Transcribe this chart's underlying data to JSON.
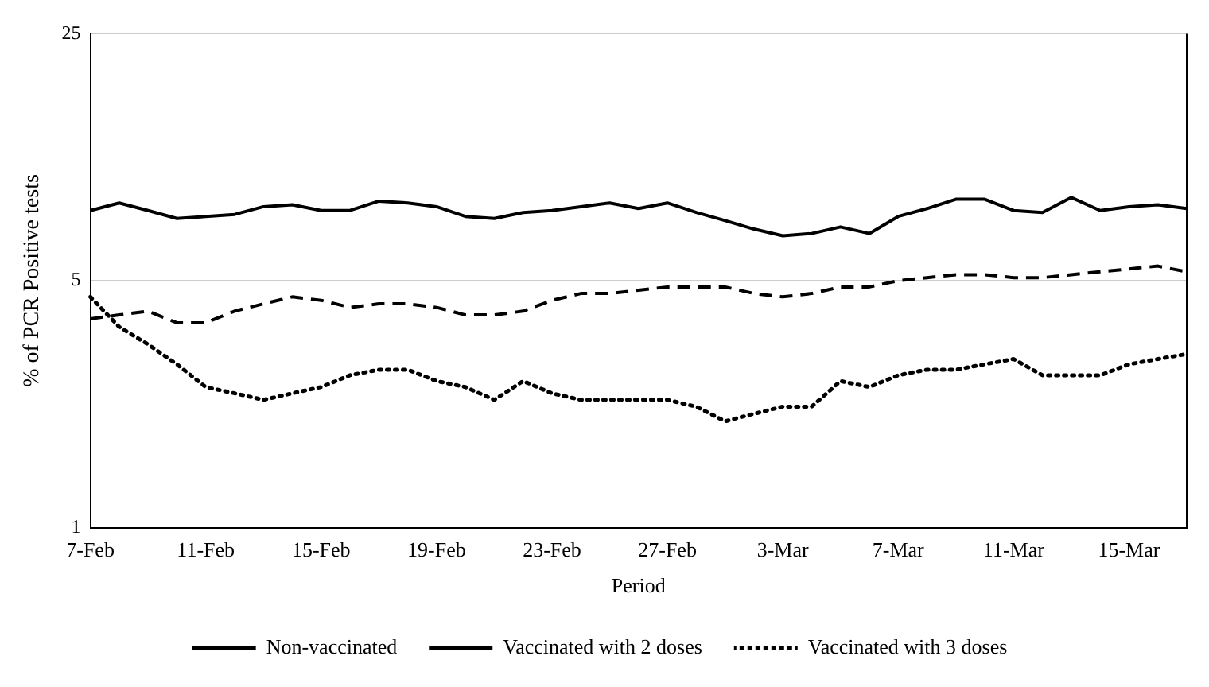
{
  "chart_data": {
    "type": "line",
    "xlabel": "Period",
    "ylabel": "% of PCR Positive tests",
    "categories": [
      "7-Feb",
      null,
      null,
      null,
      "11-Feb",
      null,
      null,
      null,
      "15-Feb",
      null,
      null,
      null,
      "19-Feb",
      null,
      null,
      null,
      "23-Feb",
      null,
      null,
      null,
      "27-Feb",
      null,
      null,
      null,
      "3-Mar",
      null,
      null,
      null,
      "7-Mar",
      null,
      null,
      null,
      "11-Mar",
      null,
      null,
      null,
      "15-Mar",
      null,
      null
    ],
    "series": [
      {
        "name": "Non-vaccinated",
        "color": "#000000",
        "line_style": "solid",
        "values": [
          7.9,
          8.3,
          7.9,
          7.5,
          7.6,
          7.7,
          8.1,
          8.2,
          7.9,
          7.9,
          8.4,
          8.3,
          8.1,
          7.6,
          7.5,
          7.8,
          7.9,
          8.1,
          8.3,
          8.0,
          8.3,
          7.8,
          7.4,
          7.0,
          6.7,
          6.8,
          7.1,
          6.8,
          7.6,
          8.0,
          8.5,
          8.5,
          7.9,
          7.8,
          8.6,
          7.9,
          8.1,
          8.2,
          8.0
        ]
      },
      {
        "name": "Vaccinated with 2 doses",
        "color": "#000000",
        "line_style": "dashed",
        "values": [
          3.9,
          4.0,
          4.1,
          3.8,
          3.8,
          4.1,
          4.3,
          4.5,
          4.4,
          4.2,
          4.3,
          4.3,
          4.2,
          4.0,
          4.0,
          4.1,
          4.4,
          4.6,
          4.6,
          4.7,
          4.8,
          4.8,
          4.8,
          4.6,
          4.5,
          4.6,
          4.8,
          4.8,
          5.0,
          5.1,
          5.2,
          5.2,
          5.1,
          5.1,
          5.2,
          5.3,
          5.4,
          5.5,
          5.3
        ]
      },
      {
        "name": "Vaccinated with 3 doses",
        "color": "#000000",
        "line_style": "dotted",
        "values": [
          4.5,
          3.7,
          3.3,
          2.9,
          2.5,
          2.4,
          2.3,
          2.4,
          2.5,
          2.7,
          2.8,
          2.8,
          2.6,
          2.5,
          2.3,
          2.6,
          2.4,
          2.3,
          2.3,
          2.3,
          2.3,
          2.2,
          2.0,
          2.1,
          2.2,
          2.2,
          2.6,
          2.5,
          2.7,
          2.8,
          2.8,
          2.9,
          3.0,
          2.7,
          2.7,
          2.7,
          2.9,
          3.0,
          3.1
        ]
      }
    ],
    "log": "y",
    "ylim": [
      1,
      25
    ],
    "yticks": [
      1,
      5,
      25
    ],
    "grid": "y",
    "legend": "bottom",
    "marker": "none"
  }
}
